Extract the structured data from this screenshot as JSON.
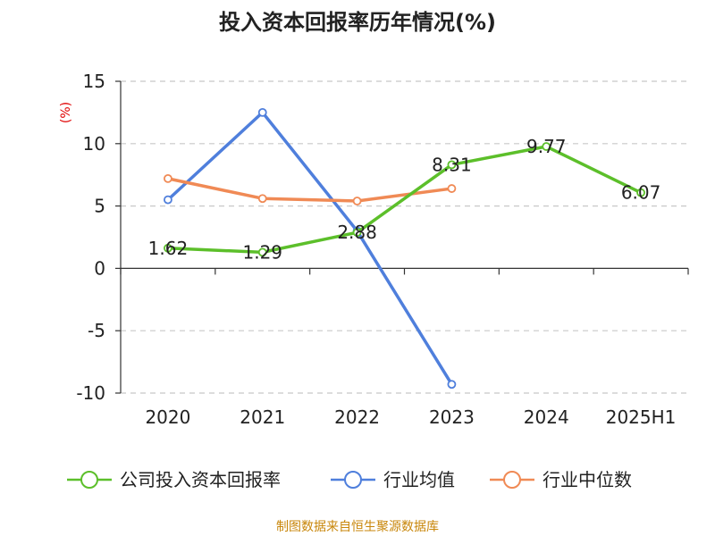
{
  "chart_data": {
    "type": "line",
    "title": "投入资本回报率历年情况(%)",
    "y_unit": "(%)",
    "categories": [
      "2020",
      "2021",
      "2022",
      "2023",
      "2024",
      "2025H1"
    ],
    "ylim": [
      -10,
      15
    ],
    "yticks": [
      15,
      10,
      5,
      0,
      -5,
      -10
    ],
    "grid": true,
    "legend_position": "bottom",
    "series": [
      {
        "name": "公司投入资本回报率",
        "color": "#5cbf2a",
        "values": [
          1.62,
          1.29,
          2.88,
          8.31,
          9.77,
          6.07
        ],
        "labels": [
          "1.62",
          "1.29",
          "2.88",
          "8.31",
          "9.77",
          "6.07"
        ]
      },
      {
        "name": "行业均值",
        "color": "#4f7fdc",
        "values": [
          5.5,
          12.5,
          3.0,
          -9.3,
          null,
          null
        ]
      },
      {
        "name": "行业中位数",
        "color": "#f08a55",
        "values": [
          7.2,
          5.6,
          5.4,
          6.4,
          null,
          null
        ]
      }
    ]
  },
  "source": "制图数据来自恒生聚源数据库"
}
